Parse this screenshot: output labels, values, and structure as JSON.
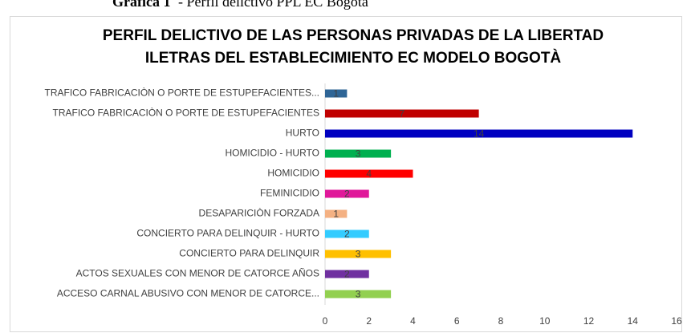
{
  "caption": {
    "label": "Gráfica 1",
    "text": "- Perfil delictivo PPL EC Bogotá"
  },
  "chart_data": {
    "type": "hbar",
    "title": [
      "PERFIL DELICTIVO DE LAS PERSONAS PRIVADAS DE LA LIBERTAD",
      "ILETRAS DEL ESTABLECIMIENTO EC MODELO BOGOTÀ"
    ],
    "categories": [
      "TRAFICO FABRICACIÒN O PORTE DE ESTUPEFACIENTES...",
      "TRAFICO FABRICACIÒN O PORTE DE ESTUPEFACIENTES",
      "HURTO",
      "HOMICIDIO - HURTO",
      "HOMICIDIO",
      "FEMINICIDIO",
      "DESAPARICIÒN FORZADA",
      "CONCIERTO PARA DELINQUIR - HURTO",
      "CONCIERTO PARA DELINQUIR",
      "ACTOS SEXUALES CON MENOR DE CATORCE AÑOS",
      "ACCESO CARNAL ABUSIVO CON MENOR DE CATORCE..."
    ],
    "values": [
      1,
      7,
      14,
      3,
      4,
      2,
      1,
      2,
      3,
      2,
      3
    ],
    "colors": [
      "#2e6596",
      "#c00000",
      "#0000c0",
      "#00b050",
      "#ff0000",
      "#e0189a",
      "#f4b183",
      "#33ccff",
      "#ffc000",
      "#7030a0",
      "#92d050"
    ],
    "xlim": [
      0,
      16
    ],
    "xticks": [
      0,
      2,
      4,
      6,
      8,
      10,
      12,
      14,
      16
    ],
    "grid": false
  }
}
